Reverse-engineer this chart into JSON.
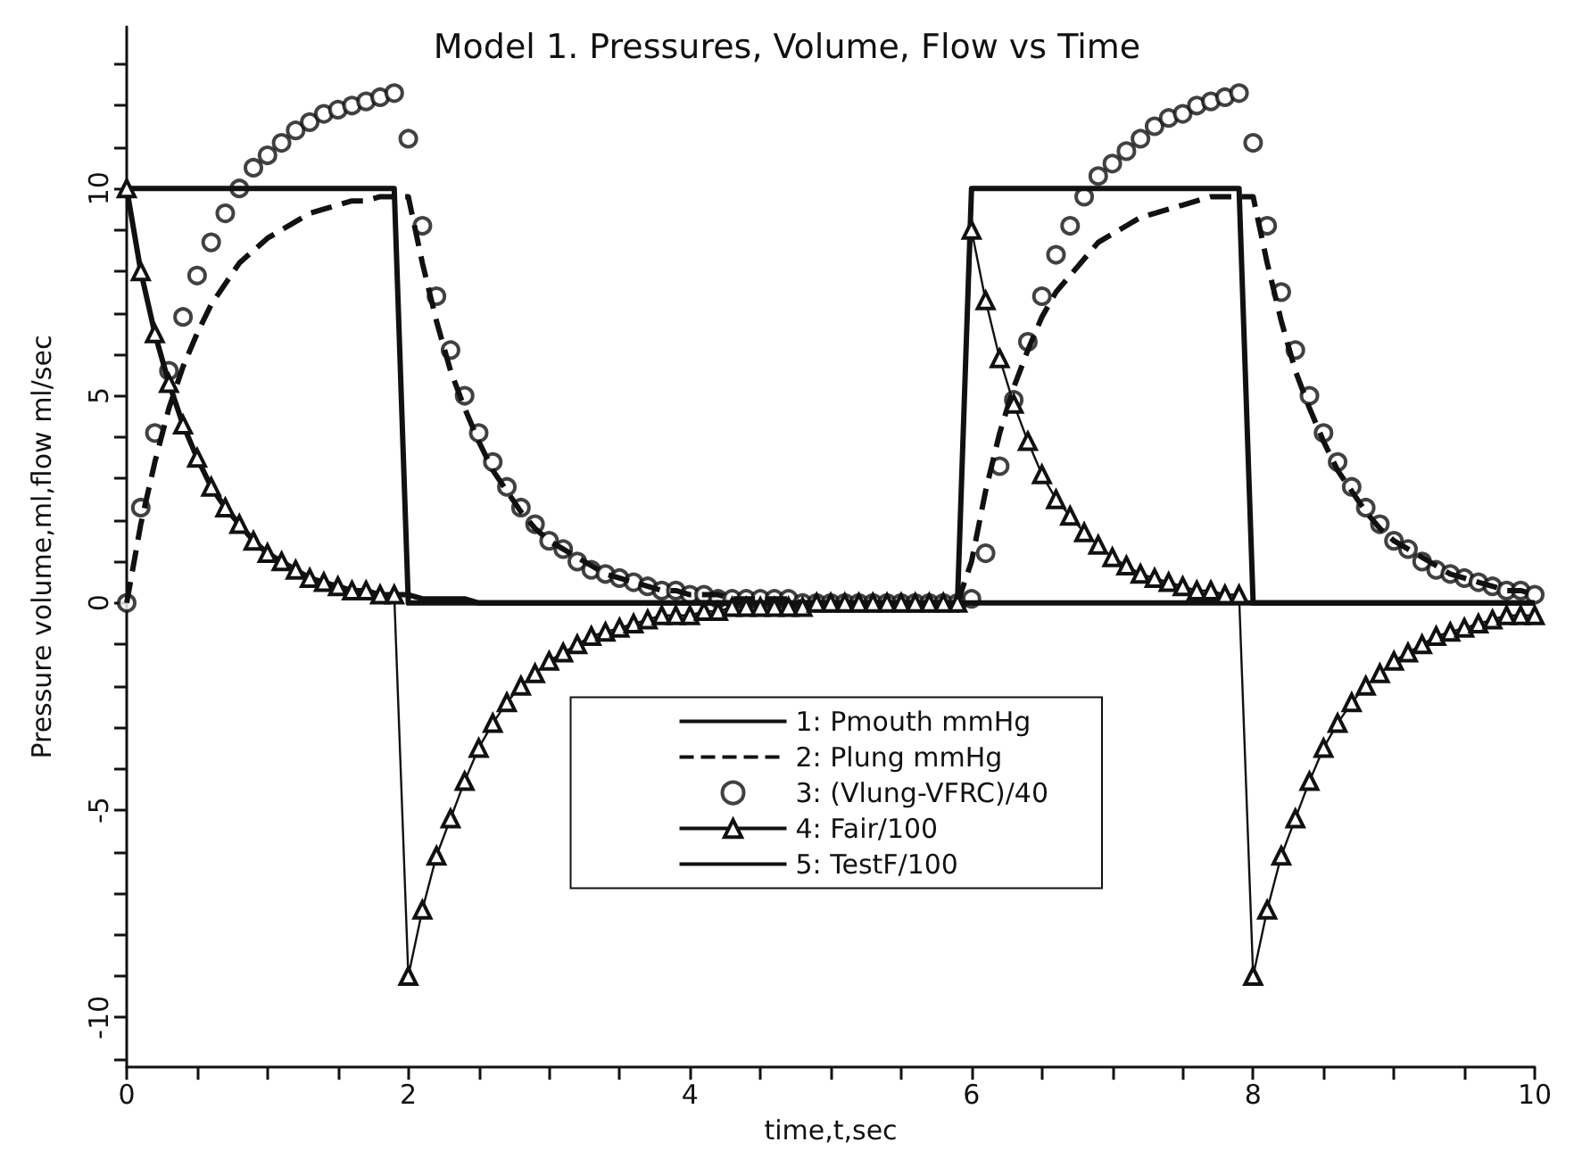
{
  "chart_data": {
    "type": "line",
    "title": "Model 1. Pressures, Volume, Flow vs Time",
    "xlabel": "time,t,sec",
    "ylabel": "Pressure volume,ml,flow ml/sec",
    "x": [
      0,
      0.1,
      0.2,
      0.3,
      0.4,
      0.5,
      0.6,
      0.7,
      0.8,
      0.9,
      1,
      1.1,
      1.2,
      1.3,
      1.4,
      1.5,
      1.6,
      1.7,
      1.8,
      1.9,
      2,
      2.1,
      2.2,
      2.3,
      2.4,
      2.5,
      2.6,
      2.7,
      2.8,
      2.9,
      3,
      3.1,
      3.2,
      3.3,
      3.4,
      3.5,
      3.6,
      3.7,
      3.8,
      3.9,
      4,
      4.1,
      4.2,
      4.3,
      4.4,
      4.5,
      4.6,
      4.7,
      4.8,
      4.9,
      5,
      5.1,
      5.2,
      5.3,
      5.4,
      5.5,
      5.6,
      5.7,
      5.8,
      5.9,
      6,
      6.1,
      6.2,
      6.3,
      6.4,
      6.5,
      6.6,
      6.7,
      6.8,
      6.9,
      7,
      7.1,
      7.2,
      7.3,
      7.4,
      7.5,
      7.6,
      7.7,
      7.8,
      7.9,
      8,
      8.1,
      8.2,
      8.3,
      8.4,
      8.5,
      8.6,
      8.7,
      8.8,
      8.9,
      9,
      9.1,
      9.2,
      9.3,
      9.4,
      9.5,
      9.6,
      9.7,
      9.8,
      9.9,
      10
    ],
    "series": [
      {
        "name": "1: Pmouth mmHg",
        "color": "#111111",
        "line_style": "solid",
        "marker": "none",
        "values": [
          10,
          10,
          10,
          10,
          10,
          10,
          10,
          10,
          10,
          10,
          10,
          10,
          10,
          10,
          10,
          10,
          10,
          10,
          10,
          10,
          0,
          0,
          0,
          0,
          0,
          0,
          0,
          0,
          0,
          0,
          0,
          0,
          0,
          0,
          0,
          0,
          0,
          0,
          0,
          0,
          0,
          0,
          0,
          0,
          0,
          0,
          0,
          0,
          0,
          0,
          0,
          0,
          0,
          0,
          0,
          0,
          0,
          0,
          0,
          0,
          10,
          10,
          10,
          10,
          10,
          10,
          10,
          10,
          10,
          10,
          10,
          10,
          10,
          10,
          10,
          10,
          10,
          10,
          10,
          10,
          0,
          0,
          0,
          0,
          0,
          0,
          0,
          0,
          0,
          0,
          0,
          0,
          0,
          0,
          0,
          0,
          0,
          0,
          0,
          0,
          0
        ]
      },
      {
        "name": "2: Plung mmHg",
        "color": "#111111",
        "line_style": "dashed",
        "marker": "none",
        "values": [
          0,
          1.9,
          3.4,
          4.7,
          5.7,
          6.5,
          7.2,
          7.7,
          8.2,
          8.5,
          8.8,
          9,
          9.2,
          9.4,
          9.5,
          9.6,
          9.7,
          9.7,
          9.8,
          9.8,
          9.8,
          8.2,
          6.8,
          5.6,
          4.7,
          3.9,
          3.2,
          2.7,
          2.2,
          1.8,
          1.5,
          1.3,
          1.1,
          0.9,
          0.7,
          0.6,
          0.5,
          0.4,
          0.3,
          0.3,
          0.2,
          0.2,
          0.2,
          0.1,
          0.1,
          0.1,
          0.1,
          0.1,
          0,
          0,
          0,
          0,
          0,
          0,
          0,
          0,
          0,
          0,
          0,
          0,
          1,
          2.7,
          4.1,
          5.2,
          6.1,
          6.9,
          7.5,
          7.9,
          8.3,
          8.7,
          8.9,
          9.1,
          9.3,
          9.4,
          9.5,
          9.6,
          9.7,
          9.8,
          9.8,
          9.8,
          9.8,
          8.2,
          6.8,
          5.6,
          4.7,
          3.9,
          3.2,
          2.7,
          2.2,
          1.8,
          1.5,
          1.3,
          1.1,
          0.9,
          0.7,
          0.6,
          0.5,
          0.4,
          0.3,
          0.3,
          0.2
        ]
      },
      {
        "name": "3: (Vlung-VFRC)/40",
        "type": "scatter",
        "color": "#111111",
        "marker": "circle",
        "values": [
          0,
          2.3,
          4.1,
          5.6,
          6.9,
          7.9,
          8.7,
          9.4,
          10,
          10.5,
          10.8,
          11.1,
          11.4,
          11.6,
          11.8,
          11.9,
          12,
          12.1,
          12.2,
          12.3,
          11.2,
          9.1,
          7.4,
          6.1,
          5,
          4.1,
          3.4,
          2.8,
          2.3,
          1.9,
          1.5,
          1.3,
          1,
          0.8,
          0.7,
          0.6,
          0.5,
          0.4,
          0.3,
          0.3,
          0.2,
          0.2,
          0.1,
          0.1,
          0.1,
          0.1,
          0.1,
          0.1,
          0,
          0,
          0,
          0,
          0,
          0,
          0,
          0,
          0,
          0,
          0,
          0,
          0.1,
          1.2,
          3.3,
          4.9,
          6.3,
          7.4,
          8.4,
          9.1,
          9.8,
          10.3,
          10.6,
          10.9,
          11.2,
          11.5,
          11.7,
          11.8,
          12,
          12.1,
          12.2,
          12.3,
          11.1,
          9.1,
          7.5,
          6.1,
          5,
          4.1,
          3.4,
          2.8,
          2.3,
          1.9,
          1.5,
          1.3,
          1,
          0.8,
          0.7,
          0.6,
          0.5,
          0.4,
          0.3,
          0.3,
          0.2
        ]
      },
      {
        "name": "4: Fair/100",
        "color": "#111111",
        "line_style": "solid",
        "marker": "triangle",
        "values": [
          10,
          8,
          6.5,
          5.3,
          4.3,
          3.5,
          2.8,
          2.3,
          1.9,
          1.5,
          1.2,
          1,
          0.8,
          0.6,
          0.5,
          0.4,
          0.3,
          0.3,
          0.2,
          0.2,
          -9,
          -7.4,
          -6.1,
          -5.2,
          -4.3,
          -3.5,
          -2.9,
          -2.4,
          -2,
          -1.7,
          -1.4,
          -1.2,
          -1,
          -0.8,
          -0.7,
          -0.6,
          -0.5,
          -0.4,
          -0.3,
          -0.3,
          -0.3,
          -0.2,
          -0.2,
          -0.1,
          -0.1,
          -0.1,
          -0.1,
          -0.1,
          -0.1,
          0,
          0,
          0,
          0,
          0,
          0,
          0,
          0,
          0,
          0,
          0,
          9,
          7.3,
          5.9,
          4.8,
          3.9,
          3.1,
          2.5,
          2.1,
          1.7,
          1.4,
          1.1,
          0.9,
          0.7,
          0.6,
          0.5,
          0.4,
          0.3,
          0.3,
          0.2,
          0.2,
          -9,
          -7.4,
          -6.1,
          -5.2,
          -4.3,
          -3.5,
          -2.9,
          -2.4,
          -2,
          -1.7,
          -1.4,
          -1.2,
          -1,
          -0.8,
          -0.7,
          -0.6,
          -0.5,
          -0.4,
          -0.3,
          -0.3,
          -0.3
        ]
      },
      {
        "name": "5: TestF/100",
        "color": "#111111",
        "line_style": "solid",
        "marker": "none",
        "values": [
          10,
          8,
          6.5,
          5.3,
          4.3,
          3.5,
          2.8,
          2.3,
          1.9,
          1.5,
          1.2,
          1,
          0.8,
          0.6,
          0.5,
          0.4,
          0.3,
          0.3,
          0.2,
          0.2,
          0.2,
          0.1,
          0.1,
          0.1,
          0.1,
          0,
          0,
          0,
          0,
          0,
          0,
          0,
          0,
          0,
          0,
          0,
          0,
          0,
          0,
          0,
          0,
          0,
          0,
          0,
          0,
          0,
          0,
          0,
          0,
          0,
          0,
          0,
          0,
          0,
          0,
          0,
          0,
          0,
          0,
          0,
          0,
          0,
          0,
          0,
          0,
          0,
          0,
          0,
          0,
          0,
          0,
          0,
          0,
          0,
          0,
          0,
          0,
          0,
          0,
          0,
          0,
          0,
          0,
          0,
          0,
          0,
          0,
          0,
          0,
          0,
          0,
          0,
          0,
          0,
          0,
          0,
          0,
          0,
          0,
          0,
          0
        ]
      }
    ],
    "xlim": [
      0,
      10
    ],
    "xticks": [
      0,
      2,
      4,
      6,
      8,
      10
    ],
    "ylim": [
      -11.2,
      13.9
    ],
    "yticks": [
      -10,
      -5,
      0,
      5,
      10
    ],
    "grid": false,
    "legend": "bottom"
  }
}
